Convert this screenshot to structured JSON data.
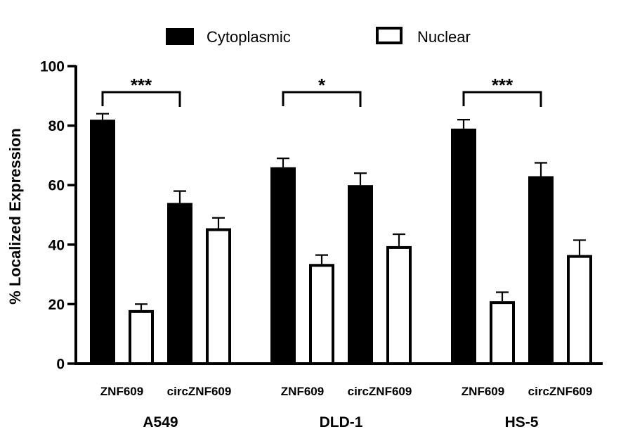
{
  "chart_data": {
    "type": "bar",
    "title": "",
    "xlabel": "",
    "ylabel": "% Localized Expression",
    "ylim": [
      0,
      100
    ],
    "yticks": [
      0,
      20,
      40,
      60,
      80,
      100
    ],
    "grid": false,
    "legend": {
      "position": "top",
      "entries": [
        {
          "name": "Cytoplasmic",
          "fill": "#000000"
        },
        {
          "name": "Nuclear",
          "fill": "#ffffff"
        }
      ]
    },
    "groups": [
      {
        "name": "A549",
        "categories": [
          "ZNF609",
          "circZNF609"
        ],
        "series": [
          {
            "name": "Cytoplasmic",
            "values": [
              82,
              54
            ],
            "errors": [
              2,
              4
            ]
          },
          {
            "name": "Nuclear",
            "values": [
              18,
              45.5
            ],
            "errors": [
              2,
              3.5
            ]
          }
        ],
        "significance": {
          "between": [
            "ZNF609 Cytoplasmic",
            "circZNF609 Cytoplasmic"
          ],
          "label": "***"
        }
      },
      {
        "name": "DLD-1",
        "categories": [
          "ZNF609",
          "circZNF609"
        ],
        "series": [
          {
            "name": "Cytoplasmic",
            "values": [
              66,
              60
            ],
            "errors": [
              3,
              4
            ]
          },
          {
            "name": "Nuclear",
            "values": [
              33.5,
              39.5
            ],
            "errors": [
              3,
              4
            ]
          }
        ],
        "significance": {
          "between": [
            "ZNF609 Cytoplasmic",
            "circZNF609 Cytoplasmic"
          ],
          "label": "*"
        }
      },
      {
        "name": "HS-5",
        "categories": [
          "ZNF609",
          "circZNF609"
        ],
        "series": [
          {
            "name": "Cytoplasmic",
            "values": [
              79,
              63
            ],
            "errors": [
              3,
              4.5
            ]
          },
          {
            "name": "Nuclear",
            "values": [
              21,
              36.5
            ],
            "errors": [
              3,
              5
            ]
          }
        ],
        "significance": {
          "between": [
            "ZNF609 Cytoplasmic",
            "circZNF609 Cytoplasmic"
          ],
          "label": "***"
        }
      }
    ]
  }
}
